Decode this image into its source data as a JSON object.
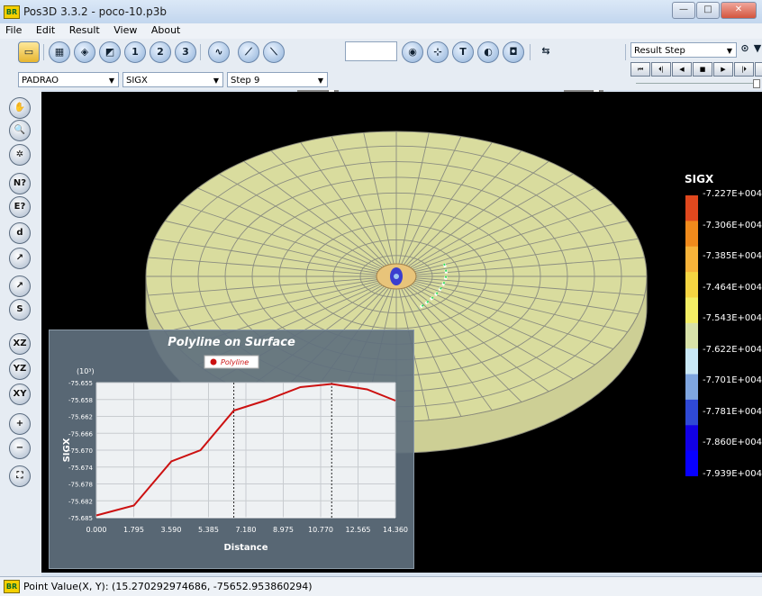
{
  "window": {
    "app_icon": "BR",
    "title": "Pos3D 3.3.2 - poco-10.p3b",
    "min_label": "—",
    "max_label": "□",
    "close_label": "✕"
  },
  "menu": [
    "File",
    "Edit",
    "Result",
    "View",
    "About"
  ],
  "toolbar": {
    "icons": [
      "open-folder-icon",
      "mesh-icon",
      "solid-icon",
      "cut-plane-icon",
      "cut-plane-2-icon",
      "cut-plane-3-icon",
      "wave-icon",
      "graph-icon",
      "graph-2-icon",
      "display-mode-icon",
      "axes-icon",
      "text-icon",
      "contrast-icon",
      "camera-icon",
      "scale-icon"
    ],
    "value_box": "",
    "result_step_select": "Result Step"
  },
  "selectors": {
    "material": "PADRAO",
    "result": "SIGX",
    "step": "Step 9"
  },
  "player": [
    "⏮",
    "⏴|",
    "◀",
    "■",
    "▶",
    "|⏵",
    "⏭"
  ],
  "sidebar_tools": [
    {
      "name": "pan-hand-icon",
      "glyph": "✋"
    },
    {
      "name": "zoom-icon",
      "glyph": "🔍"
    },
    {
      "name": "rotate-icon",
      "glyph": "✲"
    },
    {
      "name": "node-query-icon",
      "glyph": "N?"
    },
    {
      "name": "element-query-icon",
      "glyph": "E?"
    },
    {
      "name": "distance-icon",
      "glyph": "d"
    },
    {
      "name": "line-chart-icon",
      "glyph": "↗"
    },
    {
      "name": "surface-chart-icon",
      "glyph": "↗"
    },
    {
      "name": "polyline-surface-icon",
      "glyph": "S"
    },
    {
      "name": "view-xz-icon",
      "glyph": "XZ"
    },
    {
      "name": "view-yz-icon",
      "glyph": "YZ"
    },
    {
      "name": "view-xy-icon",
      "glyph": "XY"
    },
    {
      "name": "zoom-in-icon",
      "glyph": "+"
    },
    {
      "name": "zoom-out-icon",
      "glyph": "−"
    },
    {
      "name": "fit-view-icon",
      "glyph": "⛶"
    }
  ],
  "legend": {
    "title": "SIGX",
    "labels": [
      "-7.227E+004",
      "-7.306E+004",
      "-7.385E+004",
      "-7.464E+004",
      "-7.543E+004",
      "-7.622E+004",
      "-7.701E+004",
      "-7.781E+004",
      "-7.860E+004",
      "-7.939E+004"
    ],
    "colors": [
      "#e0481e",
      "#f08a1c",
      "#f7b33a",
      "#f5d542",
      "#f3ee64",
      "#d8e2a8",
      "#c9e8f6",
      "#7fa6e0",
      "#2f49d6",
      "#1200e6",
      "#0800ff"
    ]
  },
  "status": {
    "icon": "BR",
    "text": "Point Value(X, Y): (15.270292974686, -75652.953860294)"
  },
  "chart_data": {
    "type": "line",
    "title": "Polyline on Surface",
    "xlabel": "Distance",
    "ylabel": "SIGX",
    "y_scale_label": "(10³)",
    "legend": "top-center",
    "grid": true,
    "xlim": [
      0.0,
      14.36
    ],
    "ylim": [
      -75.685,
      -75.655
    ],
    "x_ticks": [
      "0.000",
      "1.795",
      "3.590",
      "5.385",
      "7.180",
      "8.975",
      "10.770",
      "12.565",
      "14.360"
    ],
    "y_ticks": [
      "-75.655",
      "-75.658",
      "-75.662",
      "-75.666",
      "-75.670",
      "-75.674",
      "-75.678",
      "-75.682",
      "-75.685"
    ],
    "markers_x": [
      6.6,
      11.3
    ],
    "series": [
      {
        "name": "Polyline",
        "color": "#cc1111",
        "x": [
          0.0,
          1.8,
          3.6,
          5.0,
          6.6,
          8.1,
          9.8,
          11.3,
          13.0,
          14.36
        ],
        "y": [
          -75.6845,
          -75.6823,
          -75.6725,
          -75.67,
          -75.6612,
          -75.659,
          -75.656,
          -75.6553,
          -75.6565,
          -75.659
        ]
      }
    ]
  }
}
